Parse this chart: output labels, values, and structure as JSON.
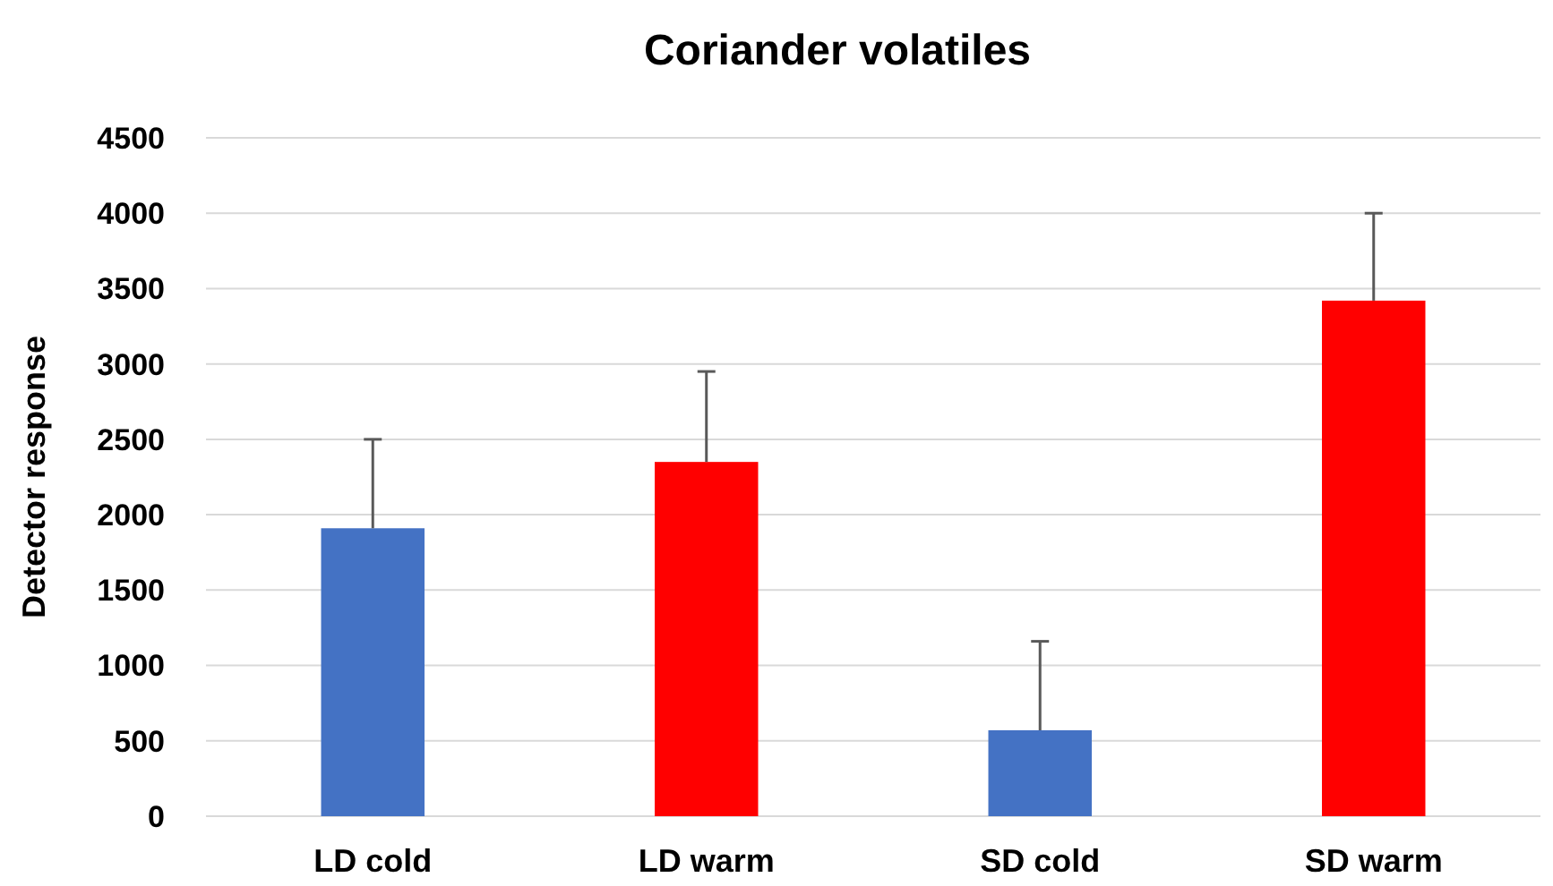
{
  "chart_data": {
    "type": "bar",
    "title": "Coriander volatiles",
    "ylabel": "Detector response",
    "categories": [
      "LD cold",
      "LD warm",
      "SD cold",
      "SD warm"
    ],
    "values": [
      1910,
      2350,
      570,
      3420
    ],
    "colors": [
      "#4472c4",
      "#ff0000",
      "#4472c4",
      "#ff0000"
    ],
    "errors": [
      [
        1910,
        2500
      ],
      [
        2350,
        2950
      ],
      [
        570,
        1160
      ],
      [
        3420,
        4000
      ]
    ],
    "ylim": [
      0,
      4500
    ],
    "yticks": [
      0,
      500,
      1000,
      1500,
      2000,
      2500,
      3000,
      3500,
      4000,
      4500
    ],
    "grid": "y"
  }
}
